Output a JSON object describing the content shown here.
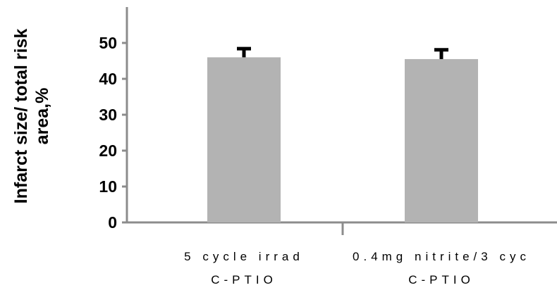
{
  "chart_data": {
    "type": "bar",
    "title": "",
    "ylabel": [
      "Infarct size/ total risk",
      "area,%"
    ],
    "xlabel": "",
    "categories": [
      [
        "5 cycle irrad",
        "C-PTIO"
      ],
      [
        "0.4mg nitrite/3 cyc",
        "C-PTIO"
      ]
    ],
    "values": [
      46,
      45.5
    ],
    "errors": [
      2.4,
      2.6
    ],
    "ylim": [
      0,
      60
    ],
    "yticks": [
      0,
      10,
      20,
      30,
      40,
      50
    ],
    "grid": false,
    "bar_color": "#b3b3b3",
    "axis_color": "#8c8c8c",
    "error_color": "#000000"
  }
}
